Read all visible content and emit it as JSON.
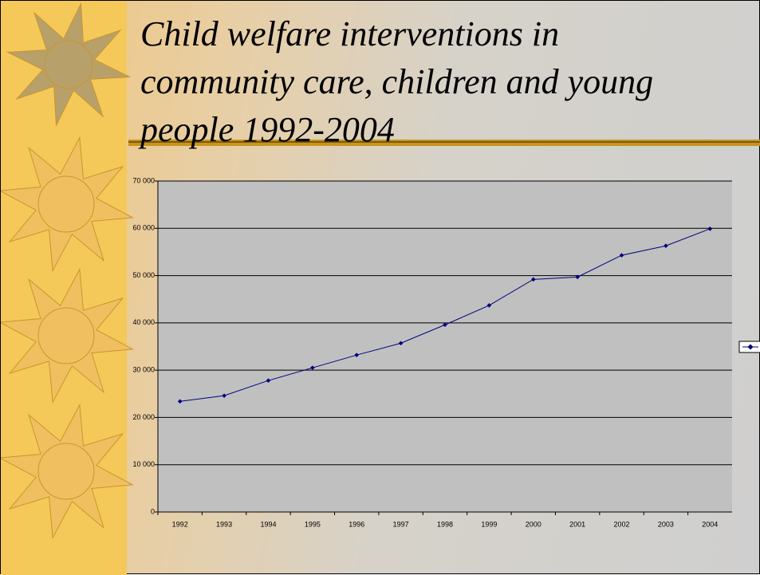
{
  "chart_data": {
    "type": "line",
    "title": "Child welfare interventions in community care, children and young people 1992-2004",
    "categories": [
      "1992",
      "1993",
      "1994",
      "1995",
      "1996",
      "1997",
      "1998",
      "1999",
      "2000",
      "2001",
      "2002",
      "2003",
      "2004"
    ],
    "series": [
      {
        "color": "#000080",
        "values": [
          23400,
          24600,
          27800,
          30500,
          33200,
          35700,
          39600,
          43700,
          49200,
          49700,
          54300,
          56300,
          59900
        ]
      }
    ],
    "ylim": [
      0,
      70000
    ],
    "yticks": [
      {
        "value": 0,
        "label": "0"
      },
      {
        "value": 10000,
        "label": "10 000"
      },
      {
        "value": 20000,
        "label": "20 000"
      },
      {
        "value": 30000,
        "label": "30 000"
      },
      {
        "value": 40000,
        "label": "40 000"
      },
      {
        "value": 50000,
        "label": "50 000"
      },
      {
        "value": 60000,
        "label": "60 000"
      },
      {
        "value": 70000,
        "label": "70 000"
      }
    ],
    "grid": true
  }
}
